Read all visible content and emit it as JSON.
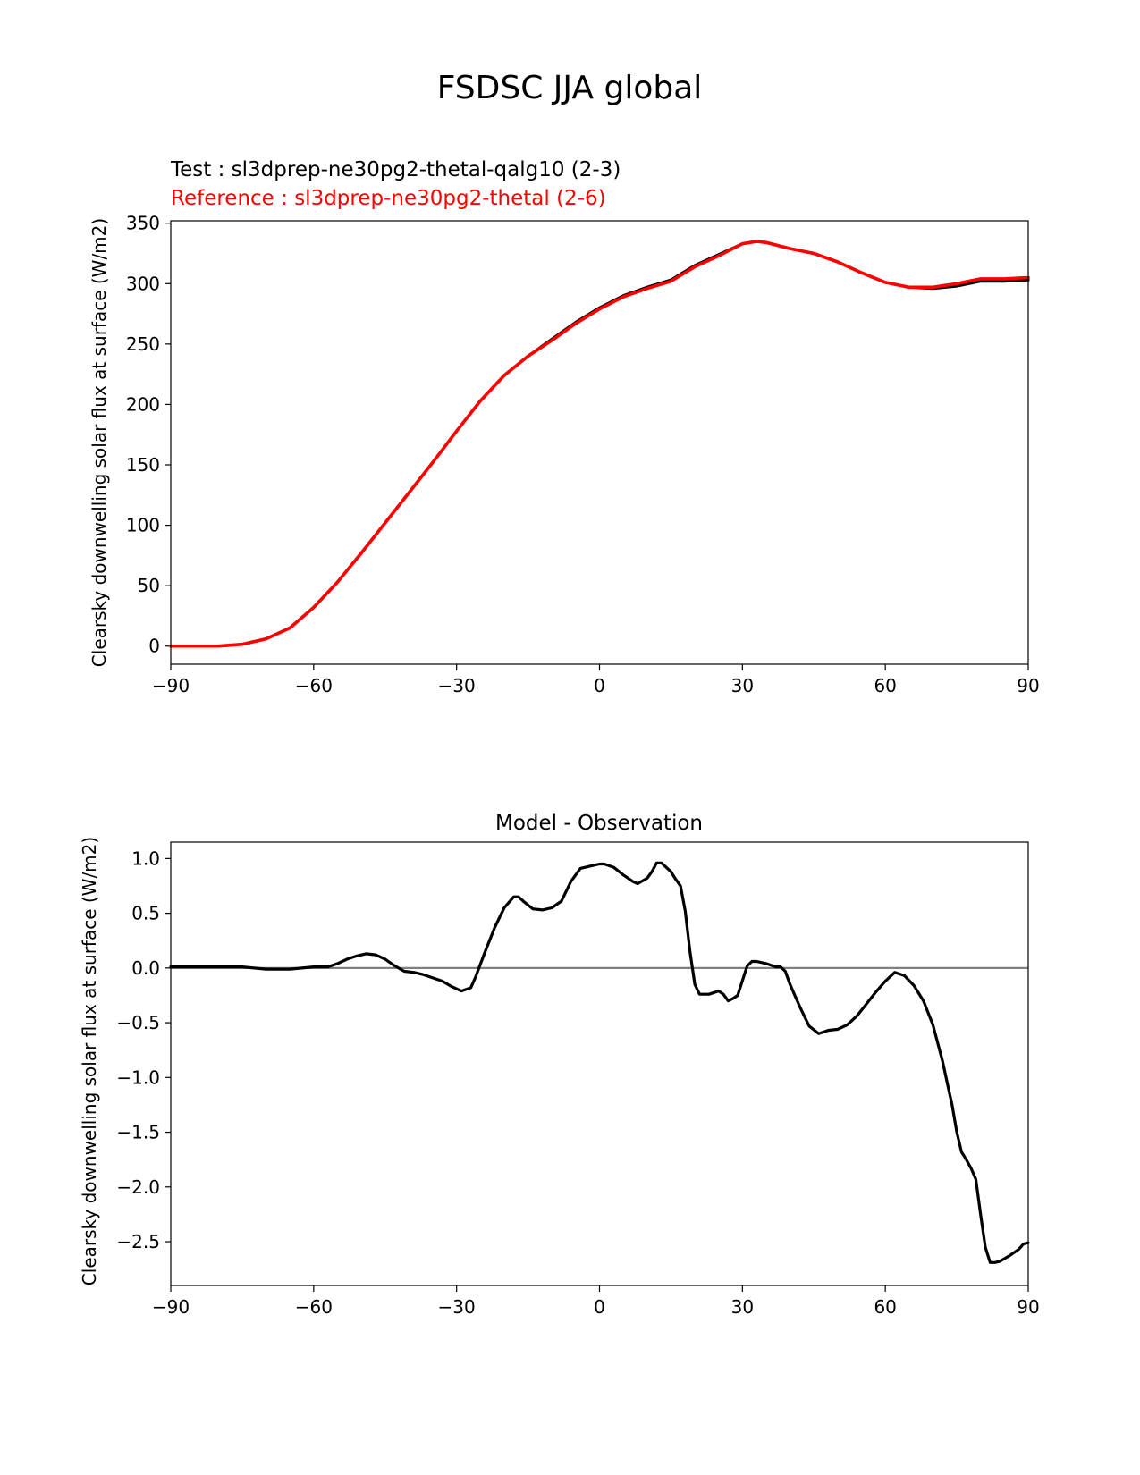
{
  "figure_title": "FSDSC JJA global",
  "colors": {
    "test": "#000000",
    "reference": "#ff0000",
    "zero_line": "#808080"
  },
  "chart_data": [
    {
      "type": "line",
      "legend": {
        "test": "Test : sl3dprep-ne30pg2-thetal-qalg10 (2-3)",
        "reference": "Reference : sl3dprep-ne30pg2-thetal (2-6)"
      },
      "ylabel": "Clearsky downwelling solar flux at surface (W/m2)",
      "xlim": [
        -90,
        90
      ],
      "ylim": [
        -15,
        352
      ],
      "xticks": [
        -90,
        -60,
        -30,
        0,
        30,
        60,
        90
      ],
      "xtick_labels": [
        "−90",
        "−60",
        "−30",
        "0",
        "30",
        "60",
        "90"
      ],
      "yticks": [
        0,
        50,
        100,
        150,
        200,
        250,
        300,
        350
      ],
      "ytick_labels": [
        "0",
        "50",
        "100",
        "150",
        "200",
        "250",
        "300",
        "350"
      ],
      "grid": false,
      "series": [
        {
          "name": "Test : sl3dprep-ne30pg2-thetal-qalg10 (2-3)",
          "color": "#000000",
          "x": [
            -90,
            -85,
            -80,
            -75,
            -70,
            -65,
            -60,
            -55,
            -50,
            -45,
            -40,
            -35,
            -30,
            -25,
            -20,
            -15,
            -10,
            -5,
            0,
            5,
            10,
            15,
            20,
            25,
            30,
            33,
            35,
            40,
            45,
            50,
            55,
            60,
            65,
            70,
            75,
            80,
            85,
            90
          ],
          "y": [
            0,
            0,
            0,
            1.5,
            6,
            15,
            32,
            53,
            77,
            102,
            127,
            152,
            178,
            203,
            224,
            240,
            254,
            268,
            280,
            290,
            297,
            303,
            315,
            324,
            333,
            335,
            334,
            329,
            325,
            318,
            309,
            301,
            297,
            296,
            298,
            302,
            302,
            303
          ]
        },
        {
          "name": "Reference : sl3dprep-ne30pg2-thetal (2-6)",
          "color": "#ff0000",
          "x": [
            -90,
            -85,
            -80,
            -75,
            -70,
            -65,
            -60,
            -55,
            -50,
            -45,
            -40,
            -35,
            -30,
            -25,
            -20,
            -15,
            -10,
            -5,
            0,
            5,
            10,
            15,
            20,
            25,
            30,
            33,
            35,
            40,
            45,
            50,
            55,
            60,
            65,
            70,
            75,
            80,
            85,
            90
          ],
          "y": [
            0,
            0,
            0,
            1.5,
            6,
            15,
            32,
            53,
            77,
            102,
            127,
            152,
            178,
            203,
            224,
            240,
            253,
            267,
            279,
            289,
            296,
            302,
            314,
            323,
            333,
            335,
            334,
            329,
            325,
            318,
            309,
            301,
            297,
            297,
            300,
            304,
            304,
            305
          ]
        }
      ]
    },
    {
      "type": "line",
      "title": "Model - Observation",
      "ylabel": "Clearsky downwelling solar flux at surface (W/m2)",
      "xlim": [
        -90,
        90
      ],
      "ylim": [
        -2.9,
        1.15
      ],
      "xticks": [
        -90,
        -60,
        -30,
        0,
        30,
        60,
        90
      ],
      "xtick_labels": [
        "−90",
        "−60",
        "−30",
        "0",
        "30",
        "60",
        "90"
      ],
      "yticks": [
        1.0,
        0.5,
        0.0,
        -0.5,
        -1.0,
        -1.5,
        -2.0,
        -2.5
      ],
      "ytick_labels": [
        "1.0",
        "0.5",
        "0.0",
        "−0.5",
        "−1.0",
        "−1.5",
        "−2.0",
        "−2.5"
      ],
      "grid": false,
      "zero_line": 0.0,
      "series": [
        {
          "color": "#000000",
          "x": [
            -90,
            -85,
            -80,
            -75,
            -70,
            -65,
            -60,
            -57,
            -55,
            -53,
            -51,
            -49,
            -47,
            -45,
            -43,
            -41,
            -39,
            -37,
            -35,
            -33,
            -31,
            -29,
            -27,
            -26,
            -24,
            -22,
            -20,
            -18,
            -17,
            -16,
            -14,
            -12,
            -10,
            -8,
            -6,
            -4,
            -2,
            0,
            1,
            3,
            5,
            7,
            8,
            10,
            11,
            12,
            13,
            15,
            16,
            17,
            18,
            19,
            20,
            21,
            23,
            25,
            26,
            27,
            28,
            29,
            31,
            32,
            33,
            35,
            37,
            38,
            39,
            40,
            42,
            44,
            46,
            48,
            50,
            52,
            54,
            56,
            58,
            60,
            61,
            62,
            64,
            66,
            68,
            70,
            72,
            73,
            74,
            75,
            76,
            77,
            78,
            79,
            80,
            81,
            82,
            83,
            84,
            86,
            88,
            89,
            90
          ],
          "y": [
            0.01,
            0.01,
            0.01,
            0.01,
            -0.01,
            -0.01,
            0.01,
            0.01,
            0.04,
            0.08,
            0.11,
            0.13,
            0.12,
            0.08,
            0.02,
            -0.03,
            -0.04,
            -0.06,
            -0.09,
            -0.12,
            -0.17,
            -0.21,
            -0.18,
            -0.08,
            0.15,
            0.37,
            0.55,
            0.65,
            0.65,
            0.61,
            0.54,
            0.53,
            0.55,
            0.61,
            0.79,
            0.91,
            0.93,
            0.95,
            0.95,
            0.92,
            0.85,
            0.79,
            0.77,
            0.82,
            0.88,
            0.96,
            0.96,
            0.88,
            0.81,
            0.75,
            0.52,
            0.15,
            -0.15,
            -0.24,
            -0.24,
            -0.21,
            -0.24,
            -0.3,
            -0.28,
            -0.25,
            0.02,
            0.06,
            0.06,
            0.04,
            0.01,
            0.01,
            -0.03,
            -0.15,
            -0.35,
            -0.53,
            -0.6,
            -0.57,
            -0.56,
            -0.52,
            -0.44,
            -0.33,
            -0.22,
            -0.12,
            -0.08,
            -0.04,
            -0.07,
            -0.16,
            -0.3,
            -0.52,
            -0.85,
            -1.05,
            -1.25,
            -1.5,
            -1.68,
            -1.75,
            -1.83,
            -1.93,
            -2.25,
            -2.55,
            -2.69,
            -2.69,
            -2.68,
            -2.63,
            -2.57,
            -2.52,
            -2.51
          ]
        }
      ]
    }
  ]
}
